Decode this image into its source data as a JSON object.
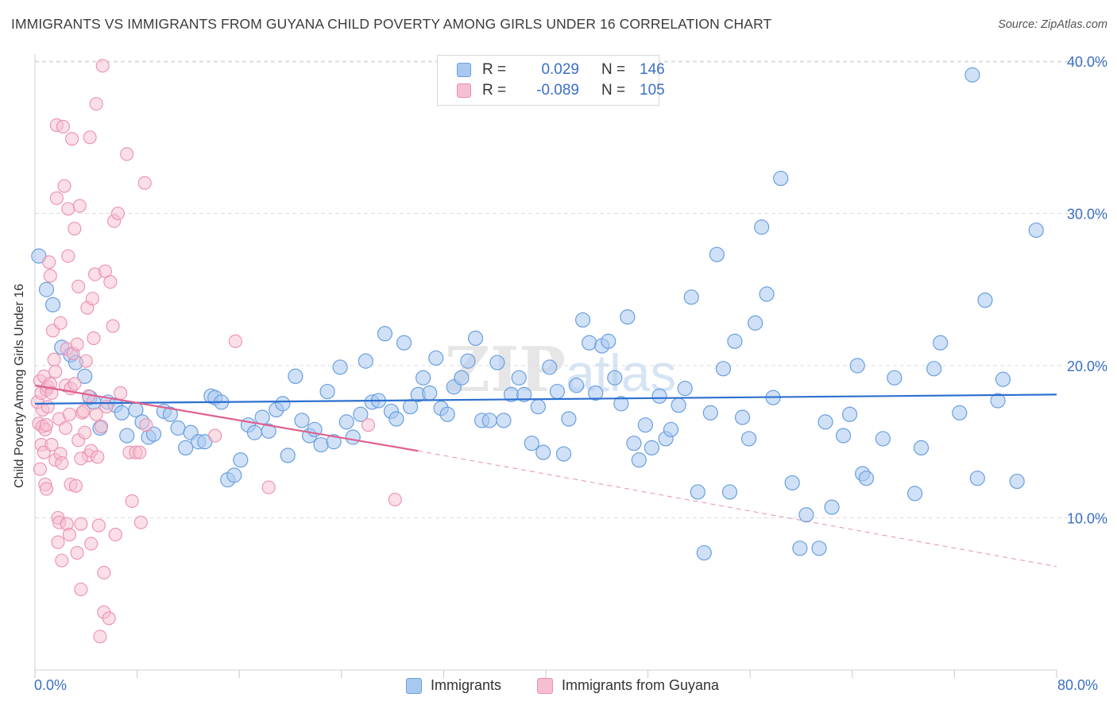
{
  "header": {
    "title": "IMMIGRANTS VS IMMIGRANTS FROM GUYANA CHILD POVERTY AMONG GIRLS UNDER 16 CORRELATION CHART",
    "source": "Source: ZipAtlas.com"
  },
  "legend": {
    "r_label": "R =",
    "n_label": "N =",
    "series": [
      {
        "r": "0.029",
        "n": "146",
        "color": "#7aaae6"
      },
      {
        "r": "-0.089",
        "n": "105",
        "color": "#f3a0bb"
      }
    ]
  },
  "watermark": {
    "zip": "ZIP",
    "atlas": "atlas"
  },
  "colors": {
    "blue_fill": "#a9c8f0",
    "blue_stroke": "#6a9fe0",
    "blue_line": "#2d6fd0",
    "pink_fill": "#f6bfd0",
    "pink_stroke": "#ec8fae",
    "pink_line": "#e0608e",
    "grid": "#dddddd",
    "axis_text": "#3a6fc4"
  },
  "chart_data": {
    "type": "scatter",
    "title": "IMMIGRANTS VS IMMIGRANTS FROM GUYANA CHILD POVERTY AMONG GIRLS UNDER 16 CORRELATION CHART",
    "xlabel": "",
    "ylabel": "Child Poverty Among Girls Under 16",
    "xlim": [
      0,
      80
    ],
    "ylim": [
      0,
      42
    ],
    "x_tick_labels": [
      "0.0%",
      "80.0%"
    ],
    "y_ticks": [
      10,
      20,
      30,
      40
    ],
    "y_tick_labels": [
      "10.0%",
      "20.0%",
      "30.0%",
      "40.0%"
    ],
    "grid": true,
    "legend_position": "top-center",
    "series": [
      {
        "name": "Immigrants",
        "color": "#7aaae6",
        "trend": {
          "x": [
            0,
            80
          ],
          "y": [
            17.5,
            18.1
          ],
          "style": "solid"
        },
        "points": [
          [
            0.3,
            27.2
          ],
          [
            0.9,
            25.0
          ],
          [
            1.4,
            24.0
          ],
          [
            2.1,
            21.2
          ],
          [
            2.8,
            20.7
          ],
          [
            3.2,
            20.2
          ],
          [
            3.9,
            19.3
          ],
          [
            4.3,
            17.9
          ],
          [
            4.6,
            17.6
          ],
          [
            5.1,
            15.9
          ],
          [
            5.7,
            17.6
          ],
          [
            6.3,
            17.4
          ],
          [
            6.8,
            16.9
          ],
          [
            7.2,
            15.4
          ],
          [
            7.9,
            17.1
          ],
          [
            8.4,
            16.3
          ],
          [
            8.9,
            15.3
          ],
          [
            9.3,
            15.5
          ],
          [
            10.1,
            17.0
          ],
          [
            10.6,
            16.8
          ],
          [
            11.2,
            15.9
          ],
          [
            11.8,
            14.6
          ],
          [
            12.2,
            15.6
          ],
          [
            12.8,
            15.0
          ],
          [
            13.3,
            15.0
          ],
          [
            13.8,
            18.0
          ],
          [
            14.1,
            17.9
          ],
          [
            14.6,
            17.6
          ],
          [
            15.1,
            12.5
          ],
          [
            15.6,
            12.8
          ],
          [
            16.1,
            13.8
          ],
          [
            16.7,
            16.1
          ],
          [
            17.2,
            15.6
          ],
          [
            17.8,
            16.6
          ],
          [
            18.3,
            15.7
          ],
          [
            18.9,
            17.1
          ],
          [
            19.4,
            17.5
          ],
          [
            19.8,
            14.1
          ],
          [
            20.4,
            19.3
          ],
          [
            20.9,
            16.4
          ],
          [
            21.5,
            15.4
          ],
          [
            21.9,
            15.8
          ],
          [
            22.4,
            14.8
          ],
          [
            22.9,
            18.3
          ],
          [
            23.4,
            15.0
          ],
          [
            23.9,
            19.9
          ],
          [
            24.4,
            16.3
          ],
          [
            24.9,
            15.3
          ],
          [
            25.5,
            16.8
          ],
          [
            25.9,
            20.3
          ],
          [
            26.4,
            17.6
          ],
          [
            26.9,
            17.7
          ],
          [
            27.4,
            22.1
          ],
          [
            27.9,
            17.0
          ],
          [
            28.3,
            16.5
          ],
          [
            28.9,
            21.5
          ],
          [
            29.4,
            17.3
          ],
          [
            30.0,
            18.1
          ],
          [
            30.4,
            19.2
          ],
          [
            30.9,
            18.2
          ],
          [
            31.4,
            20.5
          ],
          [
            31.8,
            17.2
          ],
          [
            32.3,
            16.8
          ],
          [
            32.8,
            18.6
          ],
          [
            33.4,
            19.2
          ],
          [
            33.9,
            20.3
          ],
          [
            34.5,
            21.8
          ],
          [
            35.0,
            16.4
          ],
          [
            35.6,
            16.4
          ],
          [
            36.2,
            20.2
          ],
          [
            36.7,
            16.4
          ],
          [
            37.3,
            18.1
          ],
          [
            37.9,
            19.2
          ],
          [
            38.3,
            18.1
          ],
          [
            38.9,
            14.9
          ],
          [
            39.4,
            17.3
          ],
          [
            39.8,
            14.3
          ],
          [
            40.3,
            19.9
          ],
          [
            40.9,
            18.3
          ],
          [
            41.4,
            14.2
          ],
          [
            41.8,
            16.5
          ],
          [
            42.4,
            18.7
          ],
          [
            42.9,
            23.0
          ],
          [
            43.4,
            21.5
          ],
          [
            43.9,
            18.2
          ],
          [
            44.4,
            21.3
          ],
          [
            44.9,
            21.6
          ],
          [
            45.4,
            19.2
          ],
          [
            45.9,
            17.5
          ],
          [
            46.4,
            23.2
          ],
          [
            46.9,
            14.9
          ],
          [
            47.3,
            13.8
          ],
          [
            47.8,
            16.1
          ],
          [
            48.3,
            14.6
          ],
          [
            48.9,
            18.0
          ],
          [
            49.4,
            15.2
          ],
          [
            49.8,
            15.8
          ],
          [
            50.4,
            17.4
          ],
          [
            50.9,
            18.5
          ],
          [
            51.4,
            24.5
          ],
          [
            51.9,
            11.7
          ],
          [
            52.4,
            7.7
          ],
          [
            52.9,
            16.9
          ],
          [
            53.4,
            27.3
          ],
          [
            53.9,
            19.8
          ],
          [
            54.4,
            11.7
          ],
          [
            54.8,
            21.6
          ],
          [
            55.4,
            16.6
          ],
          [
            55.9,
            15.2
          ],
          [
            56.4,
            22.8
          ],
          [
            56.9,
            29.1
          ],
          [
            57.3,
            24.7
          ],
          [
            57.8,
            17.9
          ],
          [
            58.4,
            32.3
          ],
          [
            59.3,
            12.3
          ],
          [
            59.9,
            8.0
          ],
          [
            60.4,
            10.2
          ],
          [
            61.4,
            8.0
          ],
          [
            61.9,
            16.3
          ],
          [
            62.4,
            10.7
          ],
          [
            63.3,
            15.4
          ],
          [
            63.8,
            16.8
          ],
          [
            64.4,
            20.0
          ],
          [
            64.8,
            12.9
          ],
          [
            65.1,
            12.6
          ],
          [
            66.4,
            15.2
          ],
          [
            67.3,
            19.2
          ],
          [
            68.9,
            11.6
          ],
          [
            69.4,
            14.6
          ],
          [
            70.4,
            19.8
          ],
          [
            70.9,
            21.5
          ],
          [
            72.4,
            16.9
          ],
          [
            73.4,
            39.1
          ],
          [
            73.8,
            12.6
          ],
          [
            74.4,
            24.3
          ],
          [
            75.4,
            17.7
          ],
          [
            75.8,
            19.1
          ],
          [
            76.9,
            12.4
          ],
          [
            78.4,
            28.9
          ]
        ]
      },
      {
        "name": "Immigrants from Guyana",
        "color": "#f3a0bb",
        "trend": {
          "x": [
            0,
            30,
            80
          ],
          "y": [
            18.7,
            14.4,
            6.8
          ],
          "style": "solid-then-dashed"
        },
        "points": [
          [
            0.2,
            17.6
          ],
          [
            0.3,
            16.2
          ],
          [
            0.4,
            19.0
          ],
          [
            0.5,
            18.2
          ],
          [
            0.5,
            14.8
          ],
          [
            0.6,
            16.0
          ],
          [
            0.6,
            17.1
          ],
          [
            0.7,
            19.3
          ],
          [
            0.7,
            14.3
          ],
          [
            0.8,
            15.8
          ],
          [
            0.8,
            12.2
          ],
          [
            0.9,
            18.4
          ],
          [
            0.9,
            16.1
          ],
          [
            1.0,
            17.3
          ],
          [
            1.0,
            18.6
          ],
          [
            1.1,
            26.8
          ],
          [
            1.2,
            25.9
          ],
          [
            1.2,
            18.8
          ],
          [
            1.3,
            18.2
          ],
          [
            1.4,
            22.3
          ],
          [
            1.5,
            20.4
          ],
          [
            1.6,
            19.6
          ],
          [
            1.6,
            13.8
          ],
          [
            1.7,
            35.8
          ],
          [
            1.7,
            31.0
          ],
          [
            1.8,
            10.0
          ],
          [
            1.8,
            8.4
          ],
          [
            1.9,
            9.7
          ],
          [
            1.9,
            16.5
          ],
          [
            2.0,
            22.8
          ],
          [
            2.0,
            14.2
          ],
          [
            2.1,
            13.6
          ],
          [
            2.1,
            7.2
          ],
          [
            2.2,
            35.7
          ],
          [
            2.3,
            31.8
          ],
          [
            2.4,
            18.7
          ],
          [
            2.5,
            21.1
          ],
          [
            2.5,
            9.6
          ],
          [
            2.6,
            30.3
          ],
          [
            2.6,
            27.2
          ],
          [
            2.7,
            16.8
          ],
          [
            2.8,
            12.2
          ],
          [
            2.8,
            18.5
          ],
          [
            2.9,
            34.9
          ],
          [
            3.0,
            20.8
          ],
          [
            3.1,
            18.8
          ],
          [
            3.1,
            29.0
          ],
          [
            3.2,
            12.1
          ],
          [
            3.3,
            21.4
          ],
          [
            3.3,
            7.7
          ],
          [
            3.4,
            25.2
          ],
          [
            3.4,
            15.1
          ],
          [
            3.5,
            30.5
          ],
          [
            3.6,
            5.3
          ],
          [
            3.6,
            9.6
          ],
          [
            3.7,
            16.9
          ],
          [
            3.8,
            17.0
          ],
          [
            3.9,
            15.6
          ],
          [
            4.0,
            20.3
          ],
          [
            4.1,
            23.8
          ],
          [
            4.2,
            14.1
          ],
          [
            4.3,
            35.0
          ],
          [
            4.4,
            14.4
          ],
          [
            4.4,
            8.3
          ],
          [
            4.5,
            24.4
          ],
          [
            4.6,
            21.8
          ],
          [
            4.7,
            26.0
          ],
          [
            4.8,
            37.2
          ],
          [
            4.8,
            16.8
          ],
          [
            4.9,
            14.0
          ],
          [
            5.0,
            9.5
          ],
          [
            5.1,
            2.2
          ],
          [
            5.2,
            16.0
          ],
          [
            5.3,
            39.7
          ],
          [
            5.4,
            3.8
          ],
          [
            5.4,
            6.4
          ],
          [
            5.5,
            26.2
          ],
          [
            5.8,
            3.4
          ],
          [
            5.9,
            25.5
          ],
          [
            6.1,
            22.6
          ],
          [
            6.2,
            29.5
          ],
          [
            6.3,
            8.9
          ],
          [
            6.5,
            30.0
          ],
          [
            6.7,
            18.2
          ],
          [
            7.2,
            33.9
          ],
          [
            7.4,
            14.3
          ],
          [
            7.6,
            11.1
          ],
          [
            7.9,
            14.3
          ],
          [
            8.2,
            14.3
          ],
          [
            8.3,
            9.7
          ],
          [
            8.6,
            32.0
          ],
          [
            8.7,
            16.1
          ],
          [
            14.1,
            15.4
          ],
          [
            15.7,
            21.6
          ],
          [
            18.3,
            12.0
          ],
          [
            26.1,
            16.1
          ],
          [
            28.2,
            11.2
          ],
          [
            2.4,
            15.9
          ],
          [
            1.3,
            14.8
          ],
          [
            0.9,
            11.9
          ],
          [
            3.6,
            13.9
          ],
          [
            2.7,
            8.9
          ],
          [
            4.2,
            18.0
          ],
          [
            5.6,
            17.3
          ],
          [
            0.4,
            13.2
          ]
        ]
      }
    ]
  },
  "bottom_legend": [
    "Immigrants",
    "Immigrants from Guyana"
  ]
}
